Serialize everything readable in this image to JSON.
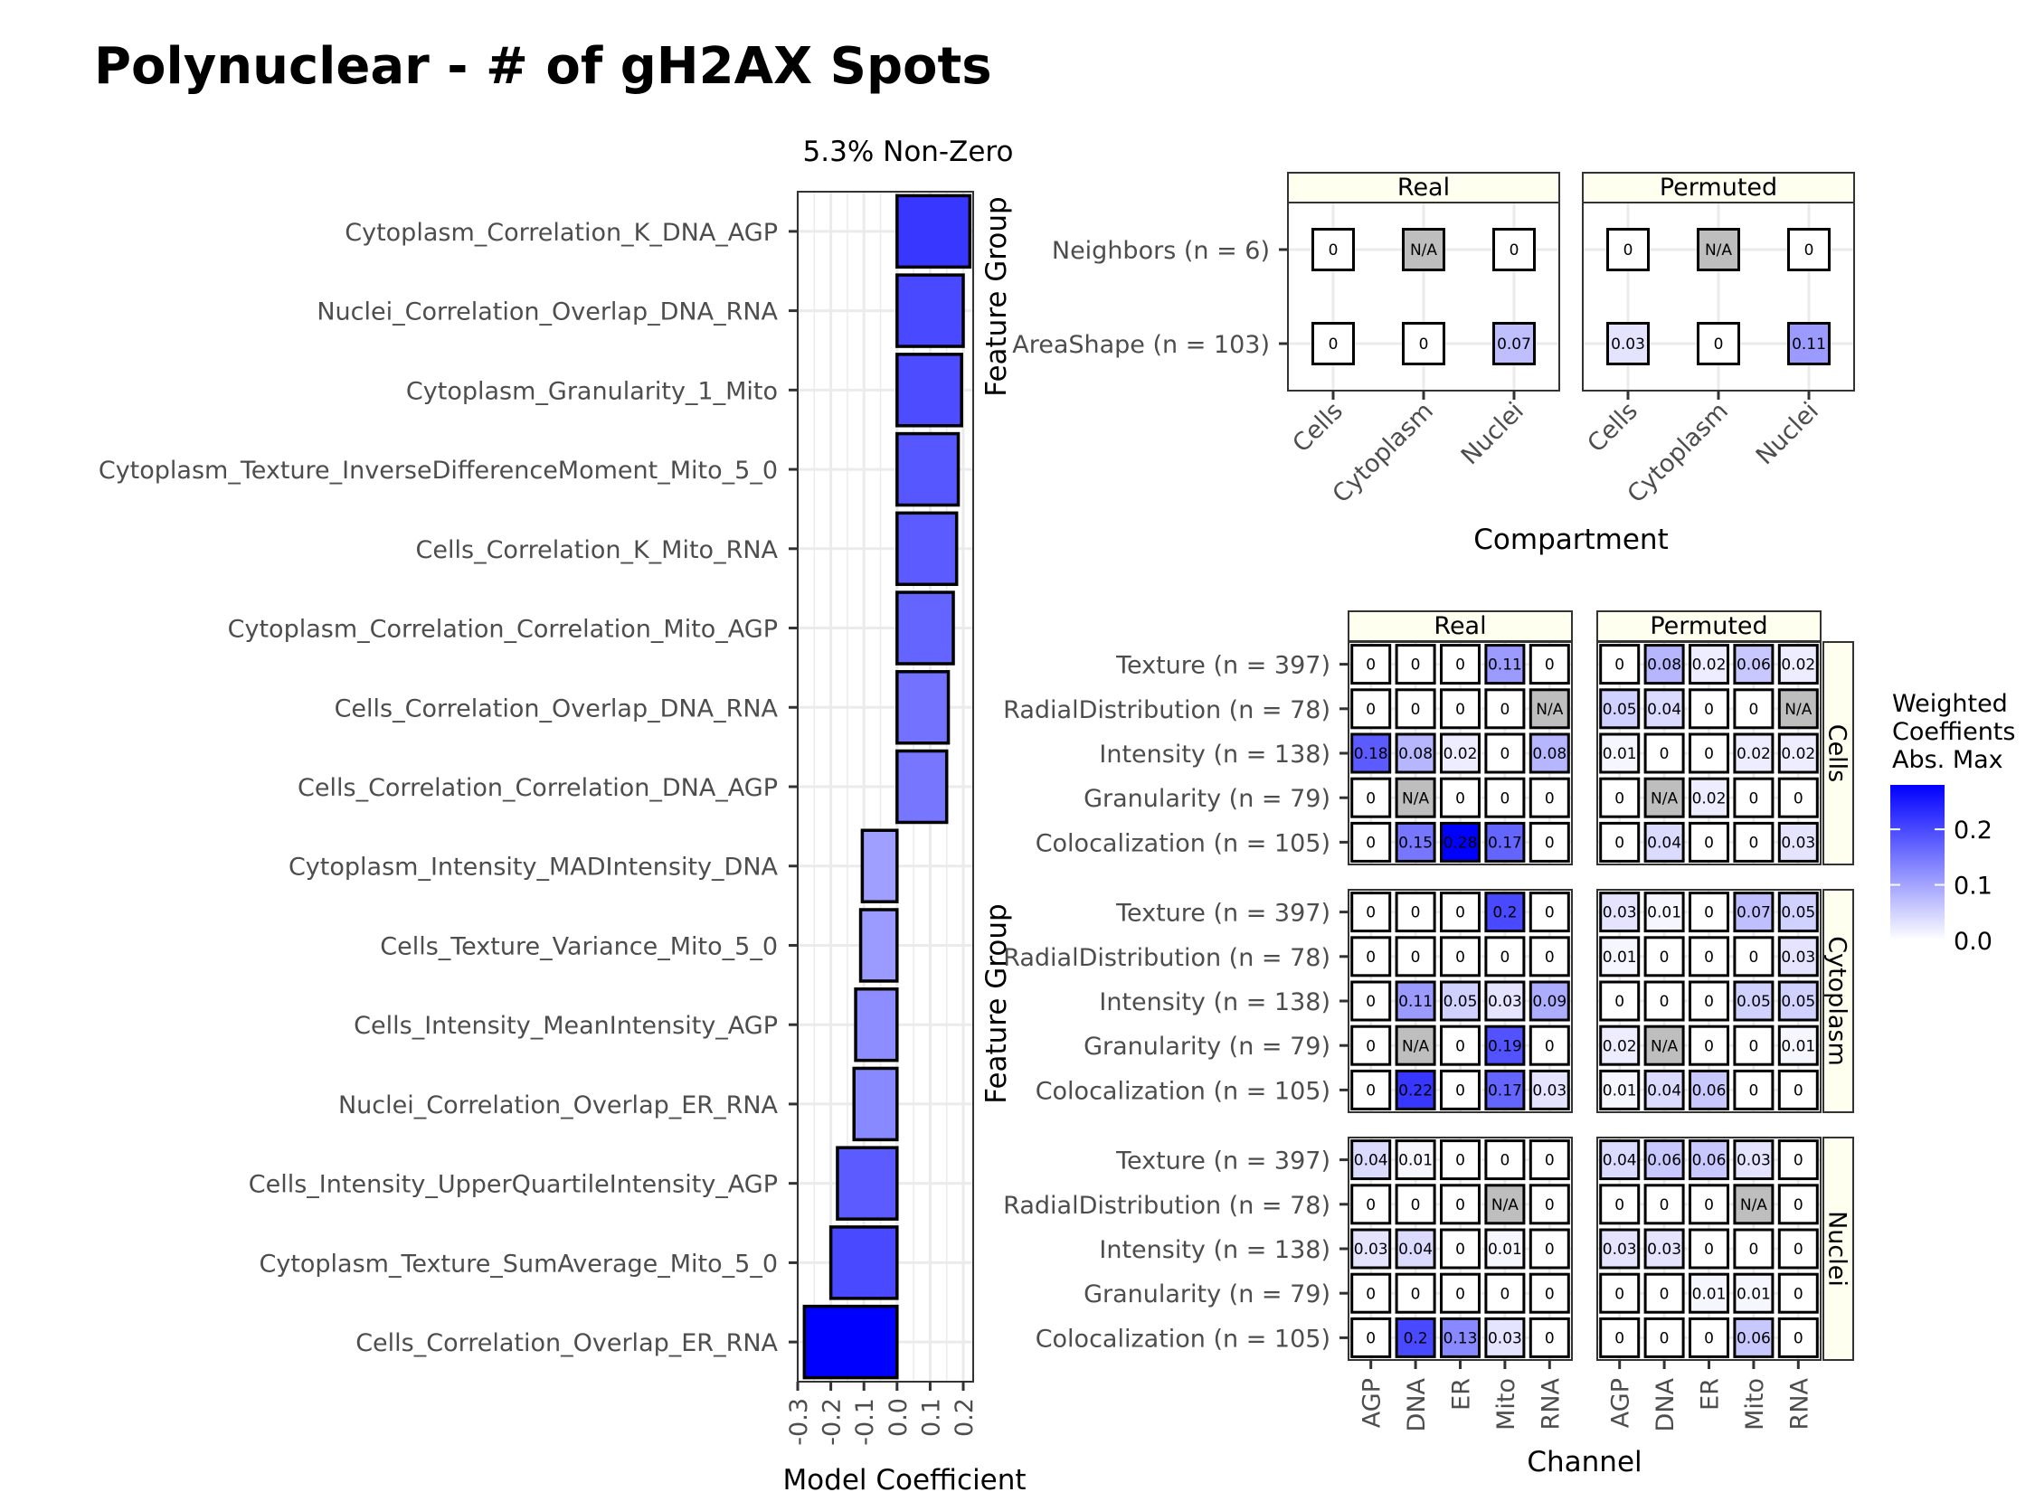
{
  "chart_data": [
    {
      "type": "bar",
      "title": "Polynuclear - # of gH2AX Spots",
      "subtitle": "5.3% Non-Zero",
      "xlabel": "Model Coefficient",
      "ylabel": "",
      "xlim": [
        -0.3,
        0.23
      ],
      "xticks": [
        "-0.3",
        "-0.2",
        "-0.1",
        "0.0",
        "0.1",
        "0.2"
      ],
      "xtick_values": [
        -0.3,
        -0.2,
        -0.1,
        0.0,
        0.1,
        0.2
      ],
      "categories": [
        "Cytoplasm_Correlation_K_DNA_AGP",
        "Nuclei_Correlation_Overlap_DNA_RNA",
        "Cytoplasm_Granularity_1_Mito",
        "Cytoplasm_Texture_InverseDifferenceMoment_Mito_5_0",
        "Cells_Correlation_K_Mito_RNA",
        "Cytoplasm_Correlation_Correlation_Mito_AGP",
        "Cells_Correlation_Overlap_DNA_RNA",
        "Cells_Correlation_Correlation_DNA_AGP",
        "Cytoplasm_Intensity_MADIntensity_DNA",
        "Cells_Texture_Variance_Mito_5_0",
        "Cells_Intensity_MeanIntensity_AGP",
        "Nuclei_Correlation_Overlap_ER_RNA",
        "Cells_Intensity_UpperQuartileIntensity_AGP",
        "Cytoplasm_Texture_SumAverage_Mito_5_0",
        "Cells_Correlation_Overlap_ER_RNA"
      ],
      "values": [
        0.22,
        0.2,
        0.195,
        0.185,
        0.18,
        0.17,
        0.155,
        0.15,
        -0.105,
        -0.11,
        -0.125,
        -0.13,
        -0.18,
        -0.2,
        -0.28
      ],
      "grid": true
    },
    {
      "type": "heatmap",
      "ylabel": "Feature Group",
      "xlabel": "Compartment",
      "panels": [
        "Real",
        "Permuted"
      ],
      "x": [
        "Cells",
        "Cytoplasm",
        "Nuclei"
      ],
      "y": [
        "Neighbors (n = 6)",
        "AreaShape (n = 103)"
      ],
      "cells": {
        "Real": [
          [
            "0",
            "N/A",
            "0"
          ],
          [
            "0",
            "0",
            "0.07"
          ]
        ],
        "Permuted": [
          [
            "0",
            "N/A",
            "0"
          ],
          [
            "0.03",
            "0",
            "0.11"
          ]
        ]
      }
    },
    {
      "type": "heatmap",
      "ylabel": "Feature Group",
      "xlabel": "Channel",
      "panels": [
        "Real",
        "Permuted"
      ],
      "facets": [
        "Cells",
        "Cytoplasm",
        "Nuclei"
      ],
      "x": [
        "AGP",
        "DNA",
        "ER",
        "Mito",
        "RNA"
      ],
      "y": [
        "Texture (n = 397)",
        "RadialDistribution (n = 78)",
        "Intensity (n = 138)",
        "Granularity (n = 79)",
        "Colocalization (n = 105)"
      ],
      "cells": {
        "Cells": {
          "Real": [
            [
              "0",
              "0",
              "0",
              "0.11",
              "0"
            ],
            [
              "0",
              "0",
              "0",
              "0",
              "N/A"
            ],
            [
              "0.18",
              "0.08",
              "0.02",
              "0",
              "0.08"
            ],
            [
              "0",
              "N/A",
              "0",
              "0",
              "0"
            ],
            [
              "0",
              "0.15",
              "0.28",
              "0.17",
              "0"
            ]
          ],
          "Permuted": [
            [
              "0",
              "0.08",
              "0.02",
              "0.06",
              "0.02"
            ],
            [
              "0.05",
              "0.04",
              "0",
              "0",
              "N/A"
            ],
            [
              "0.01",
              "0",
              "0",
              "0.02",
              "0.02"
            ],
            [
              "0",
              "N/A",
              "0.02",
              "0",
              "0"
            ],
            [
              "0",
              "0.04",
              "0",
              "0",
              "0.03"
            ]
          ]
        },
        "Cytoplasm": {
          "Real": [
            [
              "0",
              "0",
              "0",
              "0.2",
              "0"
            ],
            [
              "0",
              "0",
              "0",
              "0",
              "0"
            ],
            [
              "0",
              "0.11",
              "0.05",
              "0.03",
              "0.09"
            ],
            [
              "0",
              "N/A",
              "0",
              "0.19",
              "0"
            ],
            [
              "0",
              "0.22",
              "0",
              "0.17",
              "0.03"
            ]
          ],
          "Permuted": [
            [
              "0.03",
              "0.01",
              "0",
              "0.07",
              "0.05"
            ],
            [
              "0.01",
              "0",
              "0",
              "0",
              "0.03"
            ],
            [
              "0",
              "0",
              "0",
              "0.05",
              "0.05"
            ],
            [
              "0.02",
              "N/A",
              "0",
              "0",
              "0.01"
            ],
            [
              "0.01",
              "0.04",
              "0.06",
              "0",
              "0"
            ]
          ]
        },
        "Nuclei": {
          "Real": [
            [
              "0.04",
              "0.01",
              "0",
              "0",
              "0"
            ],
            [
              "0",
              "0",
              "0",
              "N/A",
              "0"
            ],
            [
              "0.03",
              "0.04",
              "0",
              "0.01",
              "0"
            ],
            [
              "0",
              "0",
              "0",
              "0",
              "0"
            ],
            [
              "0",
              "0.2",
              "0.13",
              "0.03",
              "0"
            ]
          ],
          "Permuted": [
            [
              "0.04",
              "0.06",
              "0.06",
              "0.03",
              "0"
            ],
            [
              "0",
              "0",
              "0",
              "N/A",
              "0"
            ],
            [
              "0.03",
              "0.03",
              "0",
              "0",
              "0"
            ],
            [
              "0",
              "0",
              "0.01",
              "0.01",
              "0"
            ],
            [
              "0",
              "0",
              "0",
              "0.06",
              "0"
            ]
          ]
        }
      },
      "legend": {
        "title": [
          "Weighted",
          "Coeffients",
          "Abs. Max"
        ],
        "ticks": [
          "0.2",
          "0.1",
          "0.0"
        ],
        "tick_values": [
          0.2,
          0.1,
          0.0
        ],
        "range": [
          0,
          0.28
        ]
      }
    }
  ],
  "colors": {
    "high": "#0000ff",
    "low": "#ffffff",
    "na": "#bebebe",
    "strip": "#fffff0",
    "grid": "#ebebeb",
    "panel_border": "#333333"
  }
}
